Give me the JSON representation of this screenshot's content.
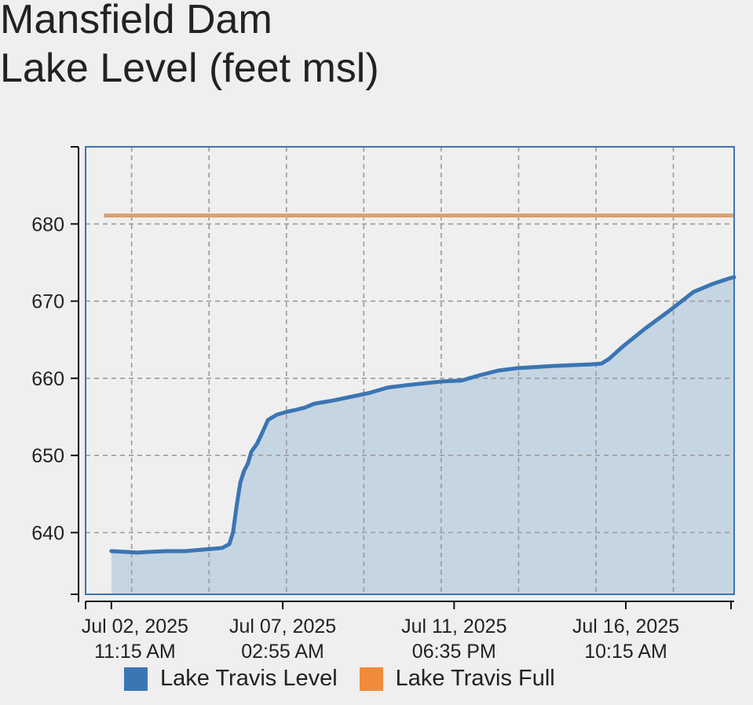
{
  "title_lines": [
    "Mansfield Dam",
    "Lake Level (feet msl)"
  ],
  "colors": {
    "level": "#3b75b3",
    "level_fill": "#c6d5e2",
    "full": "#f08b3c",
    "full_line": "#d9a06f",
    "axis": "#3b75b3",
    "grid": "#9a9a9a",
    "text": "#222222"
  },
  "chart_data": {
    "type": "area",
    "title": "Mansfield Dam Lake Level (feet msl)",
    "xlabel": "",
    "ylabel": "",
    "x_unit": "days since Jul 02, 2025 11:15 AM",
    "xlim": [
      -0.7,
      16.9
    ],
    "ylim": [
      632,
      690
    ],
    "grid": true,
    "legend_position": "bottom",
    "yticks": [
      640,
      650,
      660,
      670,
      680
    ],
    "xticks": [
      {
        "x": 0,
        "line1": "Jul 02, 2025",
        "line2": "11:15 AM"
      },
      {
        "x": 4.65,
        "line1": "Jul 07, 2025",
        "line2": "02:55 AM"
      },
      {
        "x": 9.3,
        "line1": "Jul 11, 2025",
        "line2": "06:35 PM"
      },
      {
        "x": 13.96,
        "line1": "Jul 16, 2025",
        "line2": "10:15 AM"
      }
    ],
    "series": [
      {
        "name": "Lake Travis Level",
        "points": [
          [
            0,
            637.6
          ],
          [
            0.4,
            637.5
          ],
          [
            0.7,
            637.4
          ],
          [
            1.0,
            637.5
          ],
          [
            1.5,
            637.6
          ],
          [
            2.0,
            637.6
          ],
          [
            2.5,
            637.8
          ],
          [
            3.0,
            638.0
          ],
          [
            3.2,
            638.5
          ],
          [
            3.3,
            640.0
          ],
          [
            3.4,
            643.5
          ],
          [
            3.5,
            646.5
          ],
          [
            3.6,
            648.0
          ],
          [
            3.7,
            648.9
          ],
          [
            3.8,
            650.5
          ],
          [
            3.95,
            651.5
          ],
          [
            4.1,
            653.0
          ],
          [
            4.25,
            654.6
          ],
          [
            4.5,
            655.3
          ],
          [
            4.8,
            655.7
          ],
          [
            5.0,
            655.9
          ],
          [
            5.25,
            656.2
          ],
          [
            5.5,
            656.7
          ],
          [
            6.0,
            657.1
          ],
          [
            6.5,
            657.6
          ],
          [
            7.0,
            658.1
          ],
          [
            7.5,
            658.8
          ],
          [
            8.0,
            659.1
          ],
          [
            9.0,
            659.6
          ],
          [
            9.5,
            659.7
          ],
          [
            10.0,
            660.4
          ],
          [
            10.5,
            661.0
          ],
          [
            11.0,
            661.3
          ],
          [
            12.0,
            661.6
          ],
          [
            12.5,
            661.7
          ],
          [
            13.0,
            661.8
          ],
          [
            13.3,
            661.9
          ],
          [
            13.5,
            662.5
          ],
          [
            13.9,
            664.2
          ],
          [
            14.5,
            666.5
          ],
          [
            15.1,
            668.6
          ],
          [
            15.8,
            671.2
          ],
          [
            16.3,
            672.2
          ],
          [
            16.8,
            673.0
          ],
          [
            16.9,
            673.1
          ]
        ]
      },
      {
        "name": "Lake Travis Full",
        "points": [
          [
            -0.2,
            681.1
          ],
          [
            16.9,
            681.1
          ]
        ]
      }
    ]
  }
}
